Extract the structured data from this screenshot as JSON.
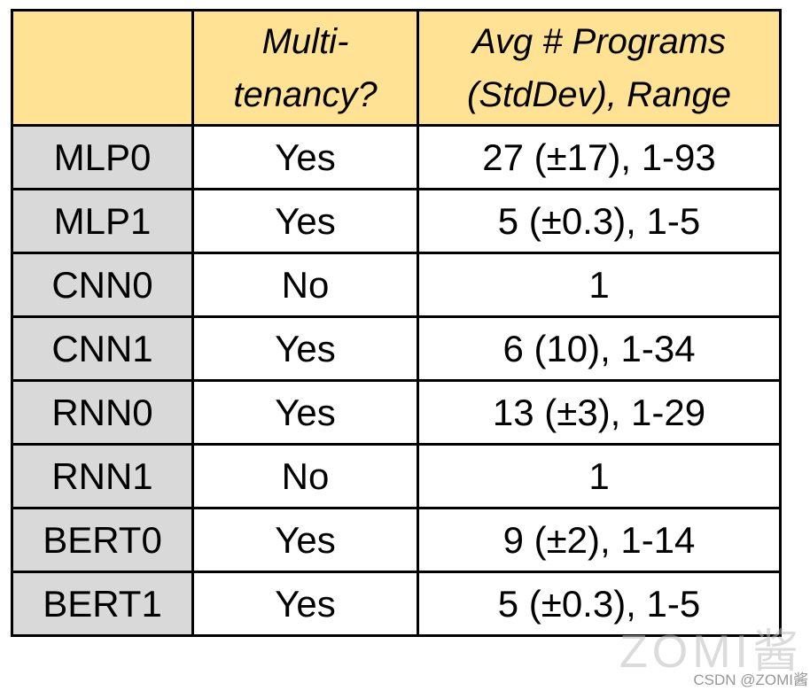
{
  "chart_data": {
    "type": "table",
    "columns": [
      "",
      "Multi-tenancy?",
      "Avg # Programs (StdDev), Range"
    ],
    "rows": [
      [
        "MLP0",
        "Yes",
        "27 (±17), 1-93"
      ],
      [
        "MLP1",
        "Yes",
        "5 (±0.3), 1-5"
      ],
      [
        "CNN0",
        "No",
        "1"
      ],
      [
        "CNN1",
        "Yes",
        "6 (10), 1-34"
      ],
      [
        "RNN0",
        "Yes",
        "13 (±3), 1-29"
      ],
      [
        "RNN1",
        "No",
        "1"
      ],
      [
        "BERT0",
        "Yes",
        "9 (±2), 1-14"
      ],
      [
        "BERT1",
        "Yes",
        "5 (±0.3), 1-5"
      ]
    ]
  },
  "table": {
    "header": {
      "model": "",
      "tenancy_line1": "Multi-",
      "tenancy_line2": "tenancy?",
      "programs_line1": "Avg # Programs",
      "programs_line2": "(StdDev), Range"
    },
    "rows": [
      {
        "model": "MLP0",
        "multitenancy": "Yes",
        "programs": "27 (±17), 1-93"
      },
      {
        "model": "MLP1",
        "multitenancy": "Yes",
        "programs": "5 (±0.3), 1-5"
      },
      {
        "model": "CNN0",
        "multitenancy": "No",
        "programs": "1"
      },
      {
        "model": "CNN1",
        "multitenancy": "Yes",
        "programs": "6 (10), 1-34"
      },
      {
        "model": "RNN0",
        "multitenancy": "Yes",
        "programs": "13 (±3), 1-29"
      },
      {
        "model": "RNN1",
        "multitenancy": "No",
        "programs": "1"
      },
      {
        "model": "BERT0",
        "multitenancy": "Yes",
        "programs": "9 (±2), 1-14"
      },
      {
        "model": "BERT1",
        "multitenancy": "Yes",
        "programs": "5 (±0.3), 1-5"
      }
    ]
  },
  "watermark": {
    "large": "ZOMI酱",
    "small": "CSDN @ZOMI酱"
  },
  "colors": {
    "header_bg": "#FFE293",
    "row_label_bg": "#D9D9D9",
    "border": "#000000",
    "watermark_large": "#BEBEBE",
    "watermark_small": "#8C8C8C"
  }
}
